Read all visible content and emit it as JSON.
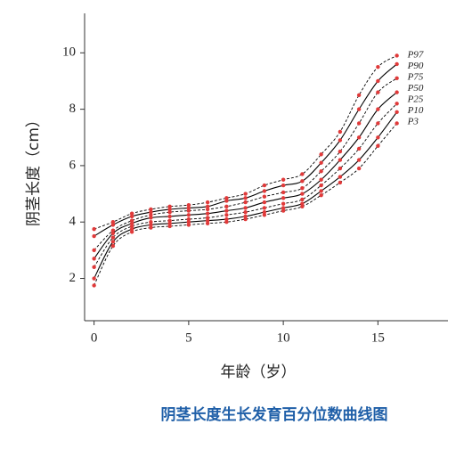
{
  "chart_data": {
    "type": "line",
    "title": "阴茎长度生长发育百分位数曲线图",
    "x_label": "年龄（岁）",
    "y_label": "阴茎长度（cm）",
    "x": [
      0,
      1,
      2,
      3,
      4,
      5,
      6,
      7,
      8,
      9,
      10,
      11,
      12,
      13,
      14,
      15,
      16
    ],
    "xlim": [
      -0.5,
      18.7
    ],
    "xticks": [
      0,
      5,
      10,
      15
    ],
    "ylim": [
      0.5,
      11.4
    ],
    "yticks": [
      2,
      4,
      6,
      8,
      10
    ],
    "grid": false,
    "marker_color": "#e03a3a",
    "series": [
      {
        "name": "P97",
        "color": "#000000",
        "line_style": "dashed",
        "values": [
          3.75,
          4.0,
          4.3,
          4.45,
          4.55,
          4.6,
          4.7,
          4.85,
          5.0,
          5.3,
          5.5,
          5.7,
          6.4,
          7.2,
          8.5,
          9.5,
          9.9
        ]
      },
      {
        "name": "P90",
        "color": "#000000",
        "line_style": "solid",
        "values": [
          3.5,
          3.9,
          4.2,
          4.35,
          4.45,
          4.5,
          4.55,
          4.75,
          4.85,
          5.1,
          5.3,
          5.45,
          6.1,
          6.9,
          8.0,
          9.0,
          9.6
        ]
      },
      {
        "name": "P75",
        "color": "#000000",
        "line_style": "dashed",
        "values": [
          3.0,
          3.7,
          4.05,
          4.25,
          4.35,
          4.4,
          4.45,
          4.55,
          4.7,
          4.9,
          5.05,
          5.2,
          5.8,
          6.5,
          7.5,
          8.6,
          9.1
        ]
      },
      {
        "name": "P50",
        "color": "#000000",
        "line_style": "solid",
        "values": [
          2.7,
          3.6,
          3.95,
          4.15,
          4.2,
          4.25,
          4.3,
          4.4,
          4.5,
          4.7,
          4.85,
          5.0,
          5.5,
          6.2,
          7.0,
          8.0,
          8.6
        ]
      },
      {
        "name": "P25",
        "color": "#000000",
        "line_style": "dashed",
        "values": [
          2.4,
          3.45,
          3.85,
          4.0,
          4.05,
          4.1,
          4.15,
          4.25,
          4.35,
          4.5,
          4.65,
          4.8,
          5.3,
          5.9,
          6.6,
          7.5,
          8.2
        ]
      },
      {
        "name": "P10",
        "color": "#000000",
        "line_style": "solid",
        "values": [
          2.0,
          3.3,
          3.75,
          3.9,
          3.95,
          4.0,
          4.05,
          4.1,
          4.2,
          4.35,
          4.5,
          4.65,
          5.1,
          5.6,
          6.2,
          7.0,
          7.9
        ]
      },
      {
        "name": "P3",
        "color": "#000000",
        "line_style": "dashed",
        "values": [
          1.75,
          3.15,
          3.65,
          3.8,
          3.85,
          3.9,
          3.95,
          4.0,
          4.1,
          4.25,
          4.4,
          4.55,
          4.95,
          5.4,
          5.9,
          6.7,
          7.5
        ]
      }
    ]
  }
}
